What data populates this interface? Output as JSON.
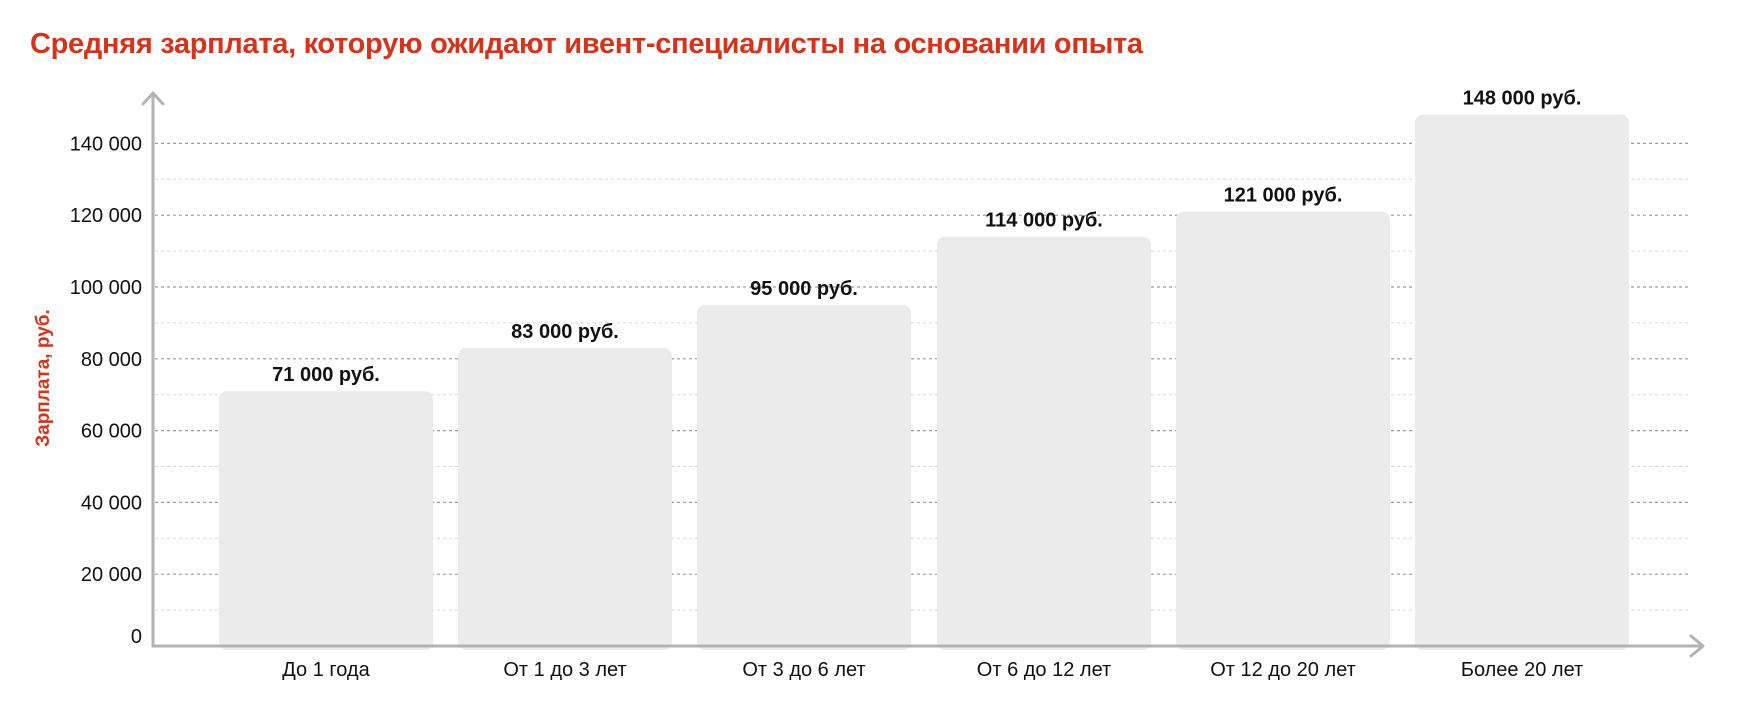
{
  "colors": {
    "accent": "#d7321b",
    "bar": "#ebebeb",
    "axis": "#b3b3b3",
    "grid_major": "#9a9a9a",
    "grid_minor": "#d9d9d9"
  },
  "chart_data": {
    "type": "bar",
    "title": "Средняя зарплата, которую ожидают ивент-специалисты на основании опыта",
    "xlabel": "",
    "ylabel": "Зарплата, руб.",
    "ylim": [
      0,
      150000
    ],
    "yticks": [
      0,
      20000,
      40000,
      60000,
      80000,
      100000,
      120000,
      140000
    ],
    "ytick_labels": [
      "0",
      "20 000",
      "40 000",
      "60 000",
      "80 000",
      "100 000",
      "120 000",
      "140 000"
    ],
    "grid": true,
    "categories": [
      "До 1 года",
      "От 1 до 3 лет",
      "От 3 до 6 лет",
      "От 6 до 12 лет",
      "От 12 до 20 лет",
      "Более 20 лет"
    ],
    "values": [
      71000,
      83000,
      95000,
      114000,
      121000,
      148000
    ],
    "data_labels": [
      "71 000 руб.",
      "83 000 руб.",
      "95 000 руб.",
      "114 000 руб.",
      "121 000 руб.",
      "148 000 руб."
    ]
  }
}
